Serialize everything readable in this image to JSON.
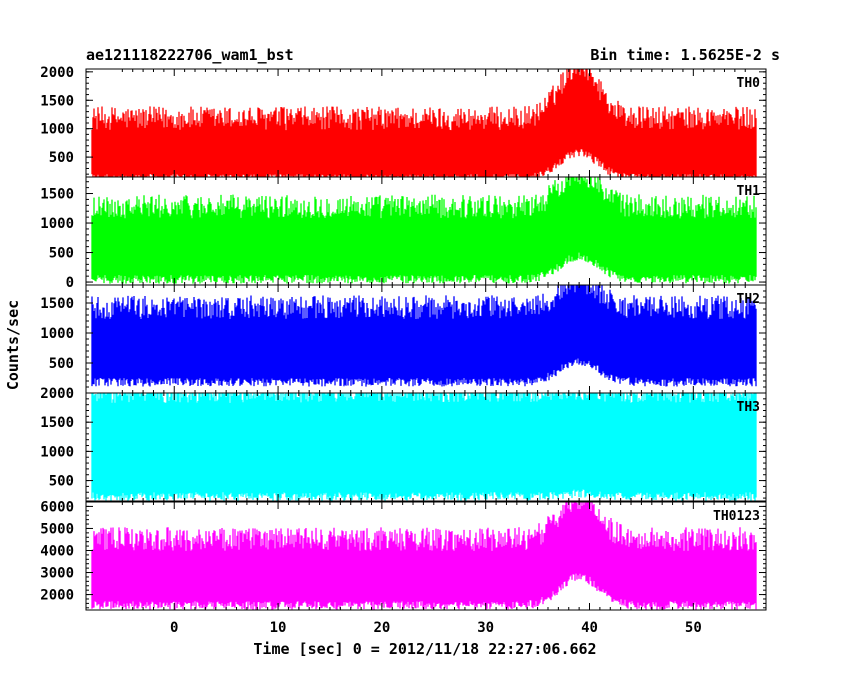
{
  "title_left": "ae121118222706_wam1_bst",
  "title_right": "Bin time: 1.5625E-2 s",
  "xlabel": "Time [sec] 0 = 2012/11/18 22:27:06.662",
  "ylabel": "Counts/sec",
  "chart_data": {
    "type": "line",
    "x_range": [
      -8.5,
      57.0
    ],
    "x_ticks": [
      0,
      10,
      20,
      30,
      40,
      50
    ],
    "x_data_extent": [
      -7.9,
      56.0
    ],
    "bin_time": 0.015625,
    "burst_peak_x": 39.0,
    "panels": [
      {
        "name": "TH0",
        "color": "#ff0000",
        "ylim": [
          150,
          2050
        ],
        "yticks": [
          500,
          1000,
          1500,
          2000
        ],
        "upper_envelope_baseline": 1100,
        "lower_envelope_baseline": 200,
        "burst_upper": 2050,
        "burst_lower": 650
      },
      {
        "name": "TH1",
        "color": "#00ff00",
        "ylim": [
          -50,
          1780
        ],
        "yticks": [
          0,
          500,
          1000,
          1500
        ],
        "upper_envelope_baseline": 1200,
        "lower_envelope_baseline": 120,
        "burst_upper": 1780,
        "burst_lower": 500
      },
      {
        "name": "TH2",
        "color": "#0000ff",
        "ylim": [
          0,
          1800
        ],
        "yticks": [
          500,
          1000,
          1500
        ],
        "upper_envelope_baseline": 1350,
        "lower_envelope_baseline": 250,
        "burst_upper": 1800,
        "burst_lower": 600
      },
      {
        "name": "TH3",
        "color": "#00ffff",
        "ylim": [
          150,
          2000
        ],
        "yticks": [
          500,
          1000,
          1500,
          2000
        ],
        "upper_envelope_baseline": 1950,
        "lower_envelope_baseline": 300,
        "burst_upper": 2000,
        "burst_lower": 350
      },
      {
        "name": "TH0123",
        "color": "#ff00ff",
        "ylim": [
          1300,
          6200
        ],
        "yticks": [
          2000,
          3000,
          4000,
          5000,
          6000
        ],
        "upper_envelope_baseline": 4300,
        "lower_envelope_baseline": 1700,
        "burst_upper": 6200,
        "burst_lower": 3000
      }
    ]
  }
}
